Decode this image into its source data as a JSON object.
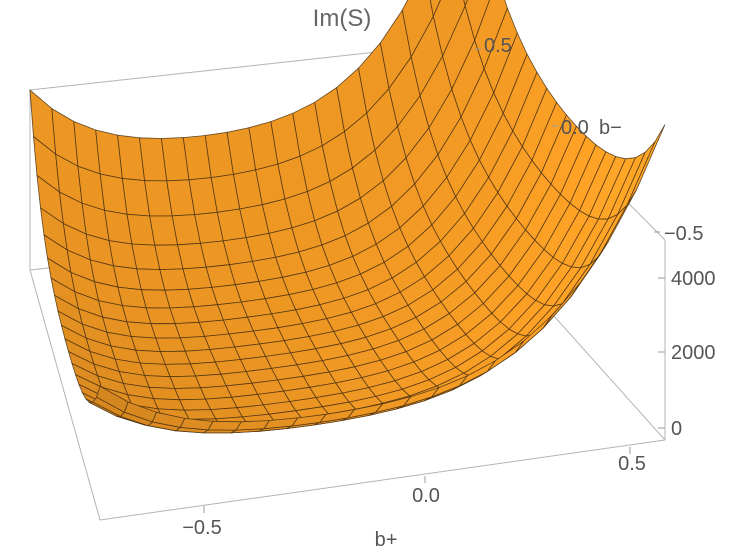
{
  "chart_data": {
    "type": "surface3d",
    "title": "Im(S)",
    "xlabel": "b+",
    "ylabel": "b−",
    "zlabel": "",
    "x_ticks": [
      "−0.5",
      "0.0",
      "0.5"
    ],
    "y_ticks": [
      "0.5",
      "0.0",
      "−0.5"
    ],
    "z_ticks": [
      "0",
      "2000",
      "4000"
    ],
    "xlim": [
      -0.7,
      0.7
    ],
    "ylim": [
      -0.7,
      0.7
    ],
    "zlim": [
      0,
      5000
    ],
    "surface_color": "#f7a52a",
    "mesh_color": "#4a3010",
    "grid": false,
    "boxed": true,
    "sample_z_values": {
      "corner_b+_-0.7_b-_0.7": 4800,
      "corner_b+_0.7_b-_0.7": 5000,
      "corner_b+_0.7_b-_-0.7": 4200,
      "min_near_b+_-0.2_b-_-0.1": 250
    }
  }
}
